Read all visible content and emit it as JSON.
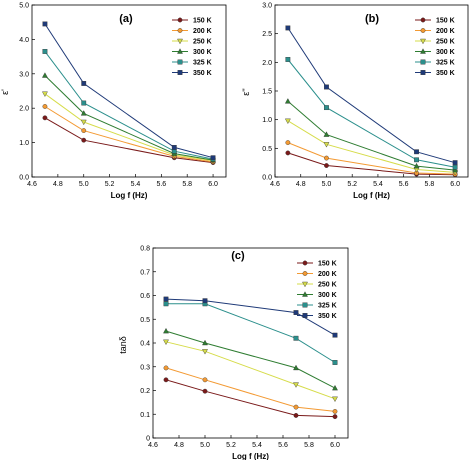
{
  "chart_data": [
    {
      "type": "line",
      "panel_label": "(a)",
      "xlabel": "Log f (Hz)",
      "ylabel": "ε'",
      "xlim": [
        4.6,
        6.1
      ],
      "ylim": [
        0,
        5
      ],
      "xticks": [
        "4.6",
        "4.8",
        "5.0",
        "5.2",
        "5.4",
        "5.6",
        "5.8",
        "6.0"
      ],
      "yticks": [
        "0.0",
        "1.0",
        "2.0",
        "3.0",
        "4.0",
        "5.0"
      ],
      "x": [
        4.7,
        5.0,
        5.7,
        6.0
      ],
      "legend_position": "top-right",
      "series": [
        {
          "name": "150 K",
          "color": "#7a1a1a",
          "marker": "circle",
          "values": [
            1.72,
            1.07,
            0.56,
            0.42
          ]
        },
        {
          "name": "200 K",
          "color": "#f39a33",
          "marker": "circle",
          "values": [
            2.05,
            1.35,
            0.6,
            0.44
          ]
        },
        {
          "name": "250 K",
          "color": "#d6dc4a",
          "marker": "triangle-down",
          "values": [
            2.42,
            1.6,
            0.64,
            0.47
          ]
        },
        {
          "name": "300 K",
          "color": "#2f7d32",
          "marker": "triangle-up",
          "values": [
            2.95,
            1.85,
            0.68,
            0.49
          ]
        },
        {
          "name": "325 K",
          "color": "#2b8f8c",
          "marker": "square",
          "values": [
            3.65,
            2.15,
            0.75,
            0.52
          ]
        },
        {
          "name": "350 K",
          "color": "#1f3a78",
          "marker": "square",
          "values": [
            4.45,
            2.72,
            0.86,
            0.56
          ]
        }
      ]
    },
    {
      "type": "line",
      "panel_label": "(b)",
      "xlabel": "Log f (Hz)",
      "ylabel": "ε''",
      "xlim": [
        4.6,
        6.1
      ],
      "ylim": [
        0,
        3
      ],
      "xticks": [
        "4.6",
        "4.8",
        "5.0",
        "5.2",
        "5.4",
        "5.6",
        "5.8",
        "6.0"
      ],
      "yticks": [
        "0.0",
        "0.5",
        "1.0",
        "1.5",
        "2.0",
        "2.5",
        "3.0"
      ],
      "x": [
        4.7,
        5.0,
        5.7,
        6.0
      ],
      "legend_position": "top-right",
      "series": [
        {
          "name": "150 K",
          "color": "#7a1a1a",
          "marker": "circle",
          "values": [
            0.42,
            0.2,
            0.05,
            0.04
          ]
        },
        {
          "name": "200 K",
          "color": "#f39a33",
          "marker": "circle",
          "values": [
            0.6,
            0.33,
            0.07,
            0.05
          ]
        },
        {
          "name": "250 K",
          "color": "#d6dc4a",
          "marker": "triangle-down",
          "values": [
            0.98,
            0.57,
            0.13,
            0.08
          ]
        },
        {
          "name": "300 K",
          "color": "#2f7d32",
          "marker": "triangle-up",
          "values": [
            1.32,
            0.74,
            0.19,
            0.12
          ]
        },
        {
          "name": "325 K",
          "color": "#2b8f8c",
          "marker": "square",
          "values": [
            2.05,
            1.21,
            0.3,
            0.17
          ]
        },
        {
          "name": "350 K",
          "color": "#1f3a78",
          "marker": "square",
          "values": [
            2.6,
            1.57,
            0.44,
            0.25
          ]
        }
      ]
    },
    {
      "type": "line",
      "panel_label": "(c)",
      "xlabel": "Log f (Hz)",
      "ylabel": "tanδ",
      "xlim": [
        4.6,
        6.1
      ],
      "ylim": [
        0,
        0.8
      ],
      "xticks": [
        "4.6",
        "4.8",
        "5.0",
        "5.2",
        "5.4",
        "5.6",
        "5.8",
        "6.0"
      ],
      "yticks": [
        "0",
        "0.1",
        "0.2",
        "0.3",
        "0.4",
        "0.5",
        "0.6",
        "0.7",
        "0.8"
      ],
      "x": [
        4.7,
        5.0,
        5.7,
        6.0
      ],
      "legend_position": "top-right",
      "series": [
        {
          "name": "150 K",
          "color": "#7a1a1a",
          "marker": "circle",
          "values": [
            0.245,
            0.197,
            0.095,
            0.09
          ]
        },
        {
          "name": "200 K",
          "color": "#f39a33",
          "marker": "circle",
          "values": [
            0.295,
            0.245,
            0.13,
            0.112
          ]
        },
        {
          "name": "250 K",
          "color": "#d6dc4a",
          "marker": "triangle-down",
          "values": [
            0.405,
            0.365,
            0.225,
            0.165
          ]
        },
        {
          "name": "300 K",
          "color": "#2f7d32",
          "marker": "triangle-up",
          "values": [
            0.45,
            0.4,
            0.295,
            0.21
          ]
        },
        {
          "name": "325 K",
          "color": "#2b8f8c",
          "marker": "square",
          "values": [
            0.565,
            0.565,
            0.42,
            0.318
          ]
        },
        {
          "name": "350 K",
          "color": "#1f3a78",
          "marker": "square",
          "values": [
            0.585,
            0.578,
            0.528,
            0.433
          ]
        }
      ]
    }
  ]
}
